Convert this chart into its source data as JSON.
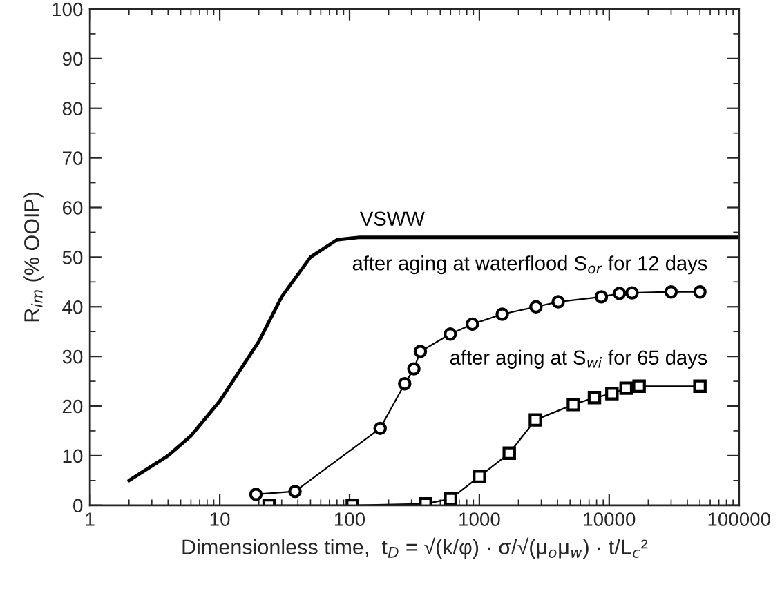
{
  "chart_data": {
    "type": "line",
    "xlabel": "Dimensionless time,  t$_{D}$ = √(k/φ) · σ/√(μ$_{o}$μ$_{w}$) · t/L$_{c}$²",
    "ylabel": "R$_{im}$ (% OOIP)",
    "log": "x",
    "xlim": [
      1,
      100000
    ],
    "xticks": [
      1,
      10,
      100,
      1000,
      10000,
      100000
    ],
    "ylim": [
      0,
      100
    ],
    "yticks": [
      0,
      10,
      20,
      30,
      40,
      50,
      60,
      70,
      80,
      90,
      100
    ],
    "series": [
      {
        "name": "VSWW",
        "color": "#000000",
        "marker": "none",
        "x": [
          2,
          4,
          6,
          10,
          20,
          30,
          50,
          80,
          120,
          100000
        ],
        "values": [
          5,
          10,
          14,
          21,
          33,
          42,
          50,
          53.5,
          54,
          54
        ]
      },
      {
        "name": "after aging at waterflood S$_{or}$ for 12 days",
        "color": "#000000",
        "marker": "circle",
        "x": [
          19,
          38,
          172,
          266,
          313,
          351,
          597,
          883,
          1500,
          2730,
          4050,
          8700,
          12000,
          15000,
          30000,
          50000
        ],
        "values": [
          2.2,
          2.8,
          15.5,
          24.5,
          27.5,
          31,
          34.5,
          36.5,
          38.5,
          40,
          41,
          42,
          42.7,
          42.8,
          43,
          43
        ]
      },
      {
        "name": "after aging at S$_{wi}$ for 65 days",
        "color": "#000000",
        "marker": "square",
        "x": [
          24,
          105,
          385,
          600,
          1000,
          1700,
          2700,
          5300,
          7700,
          10500,
          13500,
          17000,
          50000
        ],
        "values": [
          0,
          0,
          0.3,
          1.3,
          5.8,
          10.5,
          17.2,
          20.3,
          21.7,
          22.5,
          23.6,
          24,
          24
        ]
      }
    ]
  }
}
